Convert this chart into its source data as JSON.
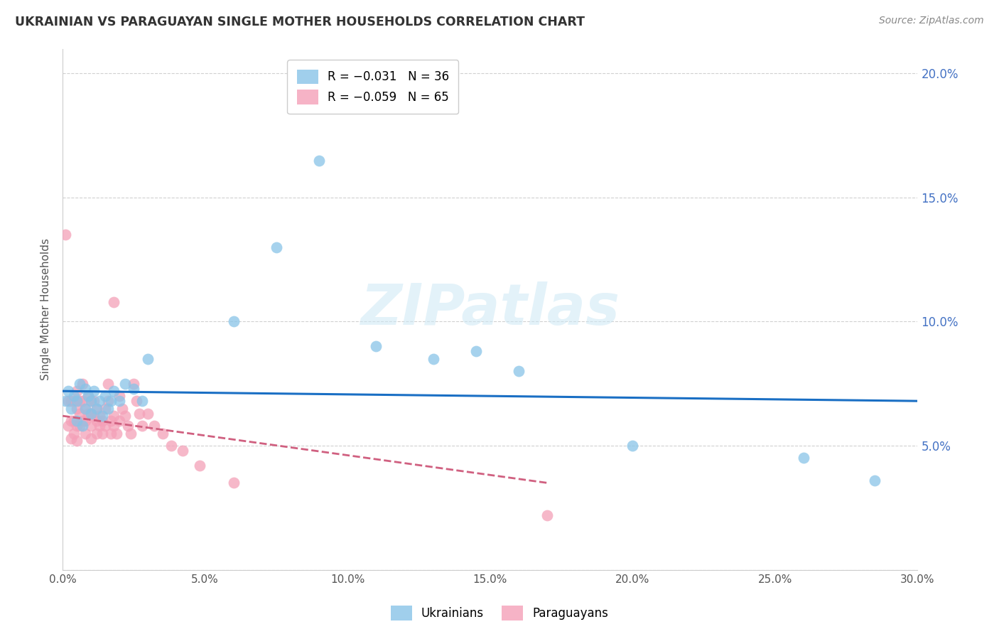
{
  "title": "UKRAINIAN VS PARAGUAYAN SINGLE MOTHER HOUSEHOLDS CORRELATION CHART",
  "source": "Source: ZipAtlas.com",
  "ylabel": "Single Mother Households",
  "xlim": [
    0.0,
    0.3
  ],
  "ylim": [
    0.0,
    0.21
  ],
  "xtick_vals": [
    0.0,
    0.05,
    0.1,
    0.15,
    0.2,
    0.25,
    0.3
  ],
  "xtick_labels": [
    "0.0%",
    "5.0%",
    "10.0%",
    "15.0%",
    "20.0%",
    "25.0%",
    "30.0%"
  ],
  "ytick_right_labels": [
    "20.0%",
    "15.0%",
    "10.0%",
    "5.0%"
  ],
  "ytick_right_values": [
    0.2,
    0.15,
    0.1,
    0.05
  ],
  "legend_ukrainian": "R = −0.031   N = 36",
  "legend_paraguayan": "R = −0.059   N = 65",
  "color_ukrainian": "#88c4e8",
  "color_paraguayan": "#f4a0b8",
  "color_trendline_ukrainian": "#1a6fc4",
  "color_trendline_paraguayan": "#d06080",
  "watermark": "ZIPatlas",
  "ukrainian_x": [
    0.001,
    0.002,
    0.003,
    0.004,
    0.005,
    0.005,
    0.006,
    0.007,
    0.008,
    0.008,
    0.009,
    0.01,
    0.01,
    0.011,
    0.012,
    0.013,
    0.014,
    0.015,
    0.016,
    0.017,
    0.018,
    0.02,
    0.022,
    0.025,
    0.028,
    0.03,
    0.06,
    0.075,
    0.09,
    0.11,
    0.13,
    0.145,
    0.16,
    0.2,
    0.26,
    0.285
  ],
  "ukrainian_y": [
    0.068,
    0.072,
    0.065,
    0.07,
    0.068,
    0.06,
    0.075,
    0.058,
    0.073,
    0.065,
    0.07,
    0.068,
    0.063,
    0.072,
    0.065,
    0.068,
    0.062,
    0.07,
    0.065,
    0.068,
    0.072,
    0.068,
    0.075,
    0.073,
    0.068,
    0.085,
    0.1,
    0.13,
    0.165,
    0.09,
    0.085,
    0.088,
    0.08,
    0.05,
    0.045,
    0.036
  ],
  "paraguayan_x": [
    0.001,
    0.002,
    0.002,
    0.003,
    0.003,
    0.003,
    0.004,
    0.004,
    0.004,
    0.005,
    0.005,
    0.005,
    0.005,
    0.006,
    0.006,
    0.006,
    0.007,
    0.007,
    0.007,
    0.008,
    0.008,
    0.008,
    0.009,
    0.009,
    0.01,
    0.01,
    0.01,
    0.01,
    0.011,
    0.011,
    0.012,
    0.012,
    0.012,
    0.013,
    0.013,
    0.014,
    0.014,
    0.015,
    0.015,
    0.016,
    0.016,
    0.017,
    0.017,
    0.018,
    0.018,
    0.018,
    0.019,
    0.02,
    0.02,
    0.021,
    0.022,
    0.023,
    0.024,
    0.025,
    0.026,
    0.027,
    0.028,
    0.03,
    0.032,
    0.035,
    0.038,
    0.042,
    0.048,
    0.06,
    0.17
  ],
  "paraguayan_y": [
    0.135,
    0.068,
    0.058,
    0.068,
    0.06,
    0.053,
    0.068,
    0.06,
    0.055,
    0.072,
    0.065,
    0.058,
    0.052,
    0.068,
    0.063,
    0.058,
    0.075,
    0.068,
    0.06,
    0.065,
    0.06,
    0.055,
    0.07,
    0.063,
    0.068,
    0.063,
    0.058,
    0.053,
    0.068,
    0.062,
    0.065,
    0.06,
    0.055,
    0.062,
    0.058,
    0.06,
    0.055,
    0.065,
    0.058,
    0.075,
    0.068,
    0.06,
    0.055,
    0.108,
    0.062,
    0.058,
    0.055,
    0.07,
    0.06,
    0.065,
    0.062,
    0.058,
    0.055,
    0.075,
    0.068,
    0.063,
    0.058,
    0.063,
    0.058,
    0.055,
    0.05,
    0.048,
    0.042,
    0.035,
    0.022
  ]
}
